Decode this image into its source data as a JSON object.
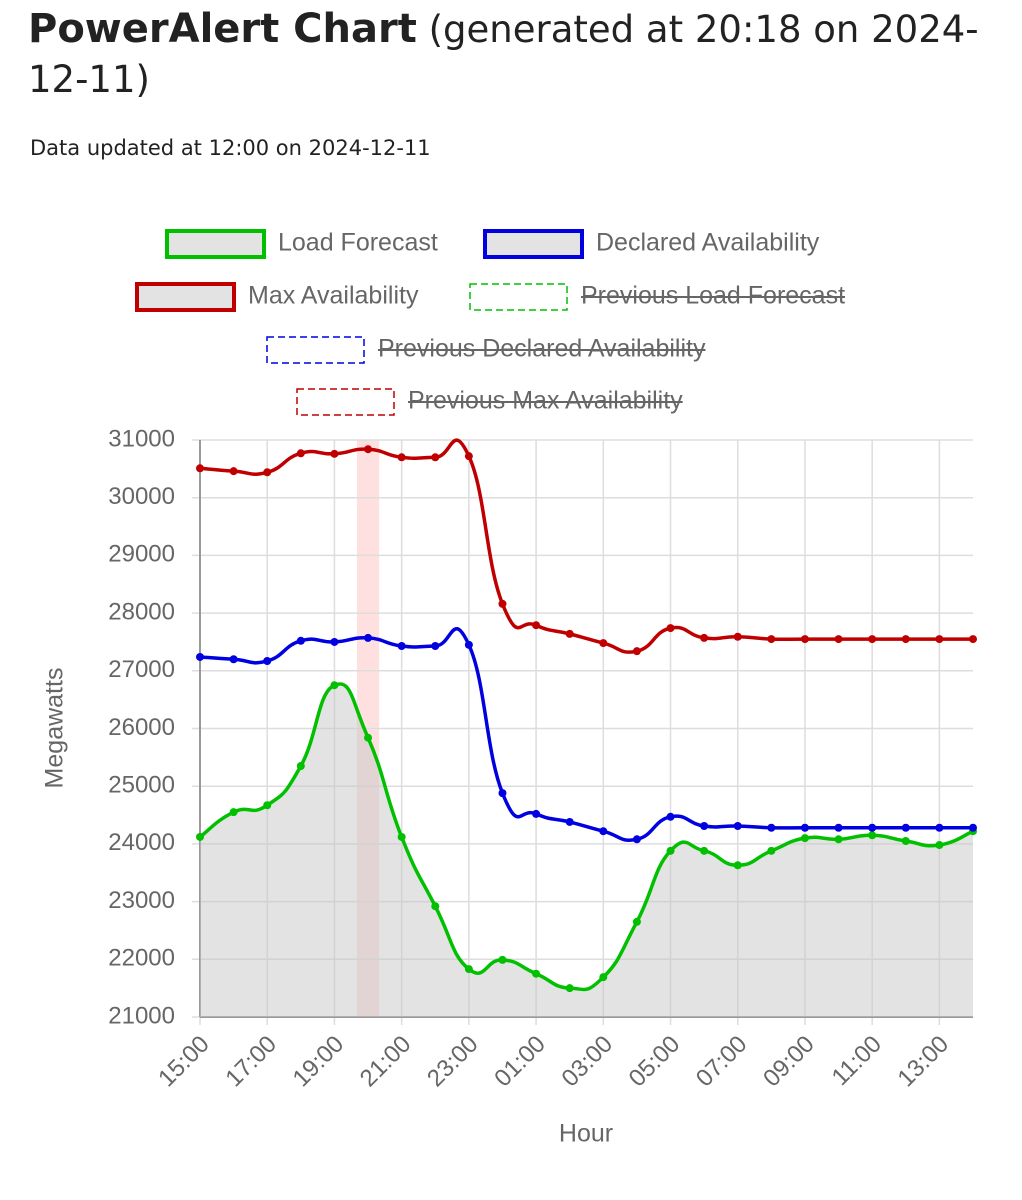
{
  "header": {
    "title": "PowerAlert Chart",
    "generated": "(generated at 20:18 on 2024-12-11)",
    "updated": "Data updated at 12:00 on 2024-12-11"
  },
  "chart_data": {
    "type": "line",
    "xlabel": "Hour",
    "ylabel": "Megawatts",
    "categories": [
      "15:00",
      null,
      "17:00",
      null,
      "19:00",
      null,
      "21:00",
      null,
      "23:00",
      null,
      "01:00",
      null,
      "03:00",
      null,
      "05:00",
      null,
      "07:00",
      null,
      "09:00",
      null,
      "11:00",
      null,
      "13:00",
      null
    ],
    "ylim": [
      21000,
      31000
    ],
    "yticks": [
      21000,
      22000,
      23000,
      24000,
      25000,
      26000,
      27000,
      28000,
      29000,
      30000,
      31000
    ],
    "grid": true,
    "highlight": {
      "category_index": 5,
      "color": "rgba(255,0,0,0.12)"
    },
    "series": [
      {
        "name": "Load Forecast",
        "color": "#00c000",
        "fill": "rgba(200,200,200,0.5)",
        "values": [
          24120,
          24550,
          24670,
          25350,
          26750,
          25840,
          24120,
          22920,
          21830,
          21990,
          21750,
          21500,
          21690,
          22650,
          23880,
          23880,
          23630,
          23880,
          24100,
          24080,
          24150,
          24050,
          23980,
          24220
        ]
      },
      {
        "name": "Declared Availability",
        "color": "#0000e0",
        "values": [
          27240,
          27200,
          27170,
          27520,
          27500,
          27570,
          27430,
          27430,
          27450,
          24880,
          24520,
          24380,
          24220,
          24080,
          24470,
          24310,
          24310,
          24280,
          24280,
          24280,
          24280,
          24280,
          24280,
          24280
        ]
      },
      {
        "name": "Max Availability",
        "color": "#c00000",
        "values": [
          30510,
          30460,
          30440,
          30770,
          30760,
          30840,
          30700,
          30700,
          30720,
          28160,
          27790,
          27640,
          27480,
          27340,
          27740,
          27570,
          27590,
          27550,
          27550,
          27550,
          27550,
          27550,
          27550,
          27550
        ]
      },
      {
        "name": "Previous Load Forecast",
        "color": "#00c000",
        "dashed": true,
        "hidden": true
      },
      {
        "name": "Previous Declared Availability",
        "color": "#0000e0",
        "dashed": true,
        "hidden": true
      },
      {
        "name": "Previous Max Availability",
        "color": "#c00000",
        "dashed": true,
        "hidden": true
      }
    ]
  }
}
